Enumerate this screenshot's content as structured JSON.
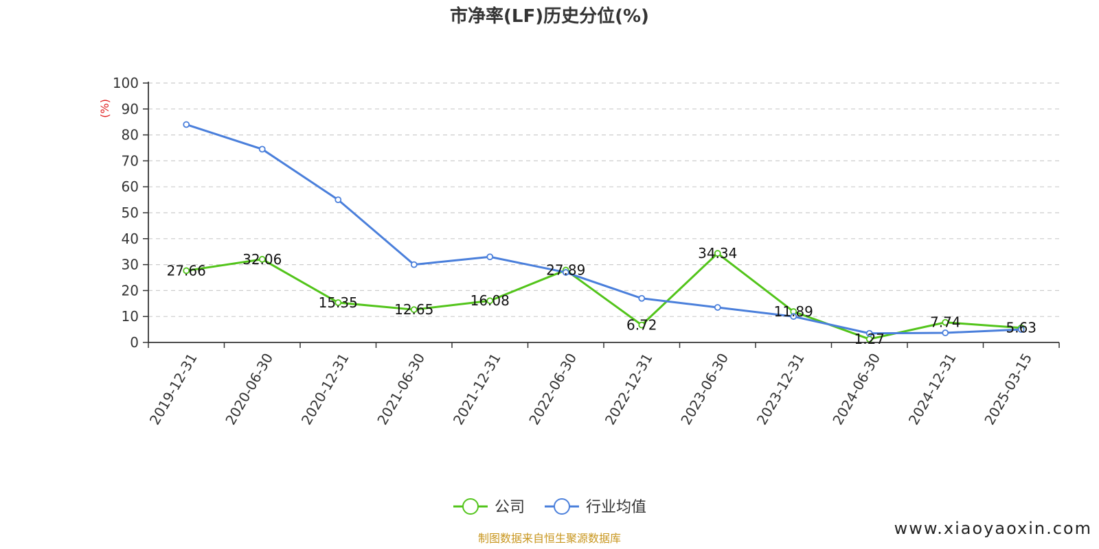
{
  "chart_data": {
    "type": "line",
    "title": "市净率(LF)历史分位(%)",
    "ylabel": "(%)",
    "ylim": [
      0,
      100
    ],
    "yticks": [
      0,
      10,
      20,
      30,
      40,
      50,
      60,
      70,
      80,
      90,
      100
    ],
    "grid": true,
    "legend_position": "bottom-center",
    "categories": [
      "2019-12-31",
      "2020-06-30",
      "2020-12-31",
      "2021-06-30",
      "2021-12-31",
      "2022-06-30",
      "2022-12-31",
      "2023-06-30",
      "2023-12-31",
      "2024-06-30",
      "2024-12-31",
      "2025-03-15"
    ],
    "series": [
      {
        "name": "公司",
        "color": "#52c41a",
        "values": [
          27.66,
          32.06,
          15.35,
          12.65,
          16.08,
          27.89,
          6.72,
          34.34,
          11.89,
          1.27,
          7.74,
          5.63
        ],
        "data_labels": [
          "27.66",
          "32.06",
          "15.35",
          "12.65",
          "16.08",
          "27.89",
          "6.72",
          "34.34",
          "11.89",
          "1.27",
          "7.74",
          "5.63"
        ]
      },
      {
        "name": "行业均值",
        "color": "#4a7fdb",
        "values": [
          84,
          74.5,
          55,
          30,
          33,
          27,
          17,
          13.5,
          10,
          3.5,
          3.7,
          5
        ]
      }
    ]
  },
  "footer": {
    "source": "制图数据来自恒生聚源数据库",
    "source_color": "#c8961e",
    "watermark": "www.xiaoyaoxin.com"
  }
}
